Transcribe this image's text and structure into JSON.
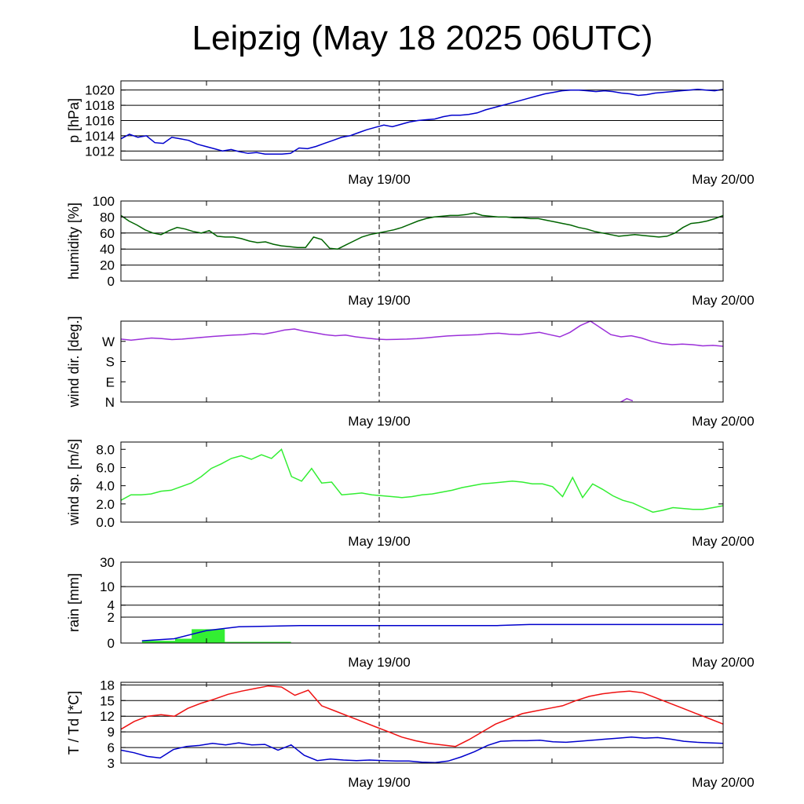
{
  "title": "Leipzig (May 18 2025 06UTC)",
  "x_tick_labels": [
    "May 19/00",
    "May 20/00"
  ],
  "chart_data": [
    {
      "type": "line",
      "ylabel": "p [hPa]",
      "yticks": [
        1012,
        1014,
        1016,
        1018,
        1020
      ],
      "ylim": [
        1010.8,
        1021.2
      ],
      "grid": true,
      "series": [
        {
          "color": "#0000cc",
          "values": [
            1013.6,
            1014.2,
            1013.8,
            1014.0,
            1013.1,
            1013.0,
            1013.8,
            1013.6,
            1013.4,
            1012.9,
            1012.6,
            1012.3,
            1012.0,
            1012.2,
            1011.9,
            1011.7,
            1011.8,
            1011.6,
            1011.6,
            1011.6,
            1011.7,
            1012.4,
            1012.3,
            1012.6,
            1013.0,
            1013.4,
            1013.8,
            1014.0,
            1014.4,
            1014.8,
            1015.1,
            1015.4,
            1015.2,
            1015.5,
            1015.8,
            1016.0,
            1016.1,
            1016.2,
            1016.5,
            1016.7,
            1016.7,
            1016.8,
            1017.0,
            1017.4,
            1017.7,
            1018.0,
            1018.3,
            1018.6,
            1018.9,
            1019.2,
            1019.5,
            1019.7,
            1019.9,
            1020.0,
            1020.0,
            1019.9,
            1019.8,
            1019.9,
            1019.8,
            1019.6,
            1019.5,
            1019.3,
            1019.4,
            1019.6,
            1019.7,
            1019.8,
            1019.9,
            1020.0,
            1020.1,
            1020.0,
            1019.9,
            1020.1
          ]
        }
      ]
    },
    {
      "type": "line",
      "ylabel": "humidity [%]",
      "yticks": [
        0,
        20,
        40,
        60,
        80,
        100
      ],
      "ylim": [
        0,
        100
      ],
      "grid": true,
      "series": [
        {
          "color": "#006400",
          "values": [
            82,
            75,
            70,
            64,
            60,
            58,
            63,
            67,
            65,
            62,
            60,
            63,
            56,
            55,
            55,
            53,
            50,
            48,
            49,
            46,
            44,
            43,
            42,
            42,
            55,
            52,
            41,
            40,
            45,
            50,
            55,
            58,
            60,
            62,
            64,
            67,
            71,
            75,
            78,
            80,
            81,
            82,
            82,
            83,
            85,
            82,
            81,
            80,
            80,
            79,
            79,
            78,
            78,
            76,
            74,
            72,
            70,
            67,
            65,
            62,
            60,
            58,
            56,
            57,
            58,
            57,
            56,
            55,
            56,
            60,
            67,
            72,
            73,
            75,
            78,
            82
          ]
        }
      ]
    },
    {
      "type": "line",
      "ylabel": "wind dir. [deg.]",
      "yticks": [
        "N",
        "E",
        "S",
        "W"
      ],
      "tick_values": [
        0,
        90,
        180,
        270
      ],
      "ylim": [
        0,
        360
      ],
      "grid": false,
      "series": [
        {
          "color": "#9b30d9",
          "values": [
            280,
            275,
            280,
            285,
            282,
            278,
            280,
            284,
            288,
            292,
            295,
            298,
            300,
            305,
            302,
            310,
            320,
            325,
            315,
            308,
            300,
            295,
            298,
            290,
            285,
            280,
            278,
            279,
            280,
            282,
            286,
            290,
            294,
            296,
            298,
            300,
            304,
            306,
            302,
            300,
            305,
            310,
            300,
            290,
            310,
            340,
            360,
            330,
            300,
            290,
            295,
            285,
            270,
            260,
            255,
            258,
            255,
            250,
            252,
            248
          ]
        },
        {
          "color": "#9b30d9",
          "values": [
            0,
            15,
            5
          ]
        }
      ]
    },
    {
      "type": "line",
      "ylabel": "wind sp. [m/s]",
      "yticks": [
        "0.0",
        "2.0",
        "4.0",
        "6.0",
        "8.0"
      ],
      "tick_values": [
        0,
        2,
        4,
        6,
        8
      ],
      "ylim": [
        0,
        8.8
      ],
      "grid": false,
      "series": [
        {
          "color": "#33ee33",
          "values": [
            2.4,
            3.0,
            3.0,
            3.1,
            3.4,
            3.5,
            3.9,
            4.3,
            5.0,
            5.9,
            6.4,
            7.0,
            7.3,
            6.9,
            7.4,
            7.0,
            8.0,
            5.0,
            4.5,
            5.9,
            4.3,
            4.4,
            3.0,
            3.1,
            3.2,
            3.0,
            2.9,
            2.8,
            2.7,
            2.8,
            3.0,
            3.1,
            3.3,
            3.5,
            3.8,
            4.0,
            4.2,
            4.3,
            4.4,
            4.5,
            4.4,
            4.2,
            4.2,
            3.9,
            2.8,
            4.9,
            2.7,
            4.2,
            3.6,
            2.9,
            2.4,
            2.1,
            1.6,
            1.1,
            1.3,
            1.6,
            1.5,
            1.4,
            1.4,
            1.6,
            1.8
          ]
        }
      ]
    },
    {
      "type": "area",
      "ylabel": "rain [mm]",
      "yticks": [
        0,
        2,
        4,
        10,
        30
      ],
      "ylim": [
        0,
        30
      ],
      "grid": true,
      "scale": "log1p",
      "series": [
        {
          "color": "#33ee33",
          "values": [
            0.1,
            0.1,
            0.2,
            0.8,
            0.8,
            0.05,
            0.05,
            0.05,
            0.05,
            0,
            0
          ]
        },
        {
          "color": "#0000cc",
          "values": [
            0.1,
            0.2,
            0.7,
            1.0,
            1.05,
            1.1,
            1.1,
            1.1,
            1.1,
            1.1,
            1.1,
            1.1,
            1.2,
            1.2,
            1.2,
            1.2,
            1.2,
            1.2,
            1.2
          ]
        }
      ]
    },
    {
      "type": "line",
      "ylabel": "T / Td [*C]",
      "yticks": [
        3,
        6,
        9,
        12,
        15,
        18
      ],
      "ylim": [
        3,
        18.5
      ],
      "grid": true,
      "series": [
        {
          "color": "#ee1111",
          "values": [
            9.5,
            11.0,
            12.0,
            12.3,
            12.0,
            13.5,
            14.5,
            15.3,
            16.2,
            16.8,
            17.3,
            17.8,
            17.6,
            16.0,
            17.0,
            14.0,
            13.0,
            12.0,
            11.0,
            10.0,
            9.0,
            8.0,
            7.3,
            6.8,
            6.5,
            6.2,
            7.5,
            9.0,
            10.5,
            11.5,
            12.5,
            13.0,
            13.5,
            14.0,
            15.0,
            15.8,
            16.3,
            16.6,
            16.8,
            16.5,
            15.5,
            14.5,
            13.5,
            12.5,
            11.5,
            10.5
          ]
        },
        {
          "color": "#0000cc",
          "values": [
            5.5,
            5.0,
            4.3,
            4.0,
            5.6,
            6.2,
            6.4,
            6.8,
            6.5,
            6.9,
            6.5,
            6.6,
            5.5,
            6.5,
            4.5,
            3.5,
            3.8,
            3.6,
            3.5,
            3.6,
            3.5,
            3.4,
            3.4,
            3.2,
            3.1,
            3.4,
            4.2,
            5.2,
            6.4,
            7.2,
            7.3,
            7.3,
            7.4,
            7.1,
            7.0,
            7.2,
            7.4,
            7.6,
            7.8,
            8.0,
            7.8,
            7.9,
            7.6,
            7.2,
            7.0,
            6.9,
            6.8
          ]
        }
      ]
    }
  ]
}
